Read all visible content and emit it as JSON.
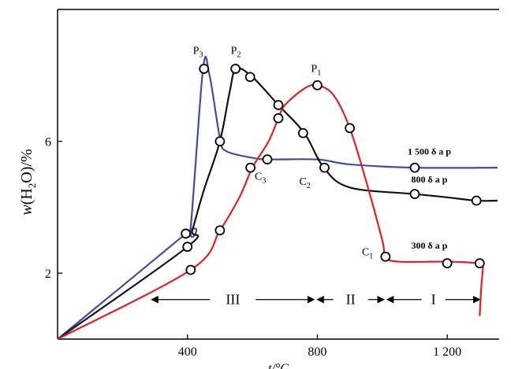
{
  "chart_data": {
    "type": "line",
    "title": "",
    "ylabel": {
      "prefix": "w",
      "main": "(H",
      "sub": "2",
      "suffix": "O)/%"
    },
    "xlabel": "t/°C",
    "xlim": [
      0,
      1360
    ],
    "ylim": [
      0,
      10
    ],
    "xticks": [
      {
        "value": 400,
        "label": "400"
      },
      {
        "value": 800,
        "label": "800"
      },
      {
        "value": 1200,
        "label": "1 200"
      }
    ],
    "yticks": [
      {
        "value": 2,
        "label": "2"
      },
      {
        "value": 6,
        "label": "6"
      }
    ],
    "grid": false,
    "series": [
      {
        "name": "1 500 δ a p",
        "color": "#3a4fa0",
        "points": [
          [
            0,
            0
          ],
          [
            395,
            3.2
          ],
          [
            410,
            3.4
          ],
          [
            448,
            8.2
          ],
          [
            468,
            8.0
          ],
          [
            500,
            6.1
          ],
          [
            520,
            5.7
          ],
          [
            600,
            5.5
          ],
          [
            650,
            5.45
          ],
          [
            800,
            5.45
          ],
          [
            900,
            5.3
          ],
          [
            1100,
            5.2
          ],
          [
            1355,
            5.2
          ]
        ],
        "markers": [
          [
            395,
            3.2
          ],
          [
            451,
            8.2
          ],
          [
            646,
            5.45
          ],
          [
            1100,
            5.2
          ]
        ]
      },
      {
        "name": "800 δ a p",
        "color": "#111111",
        "points": [
          [
            0,
            0
          ],
          [
            400,
            2.8
          ],
          [
            415,
            3.3
          ],
          [
            450,
            4.5
          ],
          [
            500,
            6.0
          ],
          [
            530,
            7.5
          ],
          [
            550,
            8.2
          ],
          [
            600,
            7.95
          ],
          [
            680,
            7.1
          ],
          [
            760,
            6.25
          ],
          [
            820,
            5.2
          ],
          [
            900,
            4.6
          ],
          [
            1100,
            4.4
          ],
          [
            1200,
            4.3
          ],
          [
            1290,
            4.2
          ],
          [
            1355,
            4.2
          ]
        ],
        "markers": [
          [
            400,
            2.8
          ],
          [
            500,
            6.0
          ],
          [
            548,
            8.2
          ],
          [
            593,
            7.95
          ],
          [
            680,
            7.1
          ],
          [
            756,
            6.25
          ],
          [
            822,
            5.2
          ],
          [
            1100,
            4.4
          ],
          [
            1290,
            4.2
          ]
        ]
      },
      {
        "name": "300 δ a p",
        "color": "#e02020",
        "points": [
          [
            0,
            0
          ],
          [
            410,
            2.1
          ],
          [
            500,
            3.3
          ],
          [
            560,
            4.3
          ],
          [
            600,
            5.2
          ],
          [
            650,
            6.0
          ],
          [
            680,
            6.7
          ],
          [
            700,
            7.1
          ],
          [
            760,
            7.6
          ],
          [
            800,
            7.7
          ],
          [
            850,
            7.4
          ],
          [
            900,
            6.4
          ],
          [
            950,
            4.8
          ],
          [
            1000,
            3.0
          ],
          [
            1010,
            2.5
          ],
          [
            1050,
            2.35
          ],
          [
            1200,
            2.35
          ],
          [
            1300,
            2.3
          ],
          [
            1310,
            2.25
          ],
          [
            1305,
            1.6
          ],
          [
            1300,
            0.7
          ]
        ],
        "markers": [
          [
            410,
            2.1
          ],
          [
            500,
            3.3
          ],
          [
            594,
            5.2
          ],
          [
            680,
            6.7
          ],
          [
            800,
            7.7
          ],
          [
            900,
            6.4
          ],
          [
            1010,
            2.5
          ],
          [
            1200,
            2.3
          ],
          [
            1300,
            2.3
          ]
        ]
      }
    ],
    "point_labels": [
      {
        "main": "P",
        "sub": "1",
        "x": 800,
        "y": 7.7
      },
      {
        "main": "P",
        "sub": "2",
        "x": 548,
        "y": 8.2
      },
      {
        "main": "P",
        "sub": "3",
        "x": 451,
        "y": 8.2
      },
      {
        "main": "C",
        "sub": "1",
        "x": 1010,
        "y": 2.5
      },
      {
        "main": "C",
        "sub": "2",
        "x": 822,
        "y": 5.2
      },
      {
        "main": "C",
        "sub": "3",
        "x": 646,
        "y": 5.45
      }
    ],
    "regions": [
      {
        "label": "III",
        "from": 290,
        "to": 790
      },
      {
        "label": "II",
        "from": 800,
        "to": 1005
      },
      {
        "label": "I",
        "from": 1015,
        "to": 1300
      }
    ]
  }
}
